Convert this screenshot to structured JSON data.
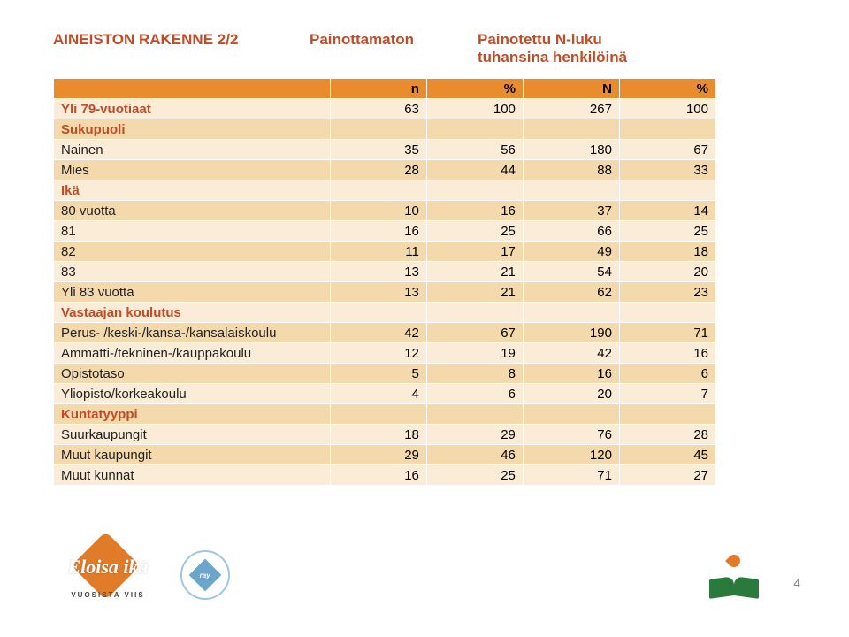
{
  "title": "AINEISTON RAKENNE 2/2",
  "subtitle1": "Painottamaton",
  "subtitle2_line1": "Painotettu N-luku",
  "subtitle2_line2": "tuhansina henkilöinä",
  "headers": {
    "n": "n",
    "pct1": "%",
    "N": "N",
    "pct2": "%"
  },
  "rows": [
    {
      "label": "Yli 79-vuotiaat",
      "c": [
        "63",
        "100",
        "267",
        "100"
      ],
      "band": "cream",
      "section": true
    },
    {
      "label": "Sukupuoli",
      "c": [
        "",
        "",
        "",
        ""
      ],
      "band": "tan",
      "section": true
    },
    {
      "label": "Nainen",
      "c": [
        "35",
        "56",
        "180",
        "67"
      ],
      "band": "cream"
    },
    {
      "label": "Mies",
      "c": [
        "28",
        "44",
        "88",
        "33"
      ],
      "band": "tan"
    },
    {
      "label": "Ikä",
      "c": [
        "",
        "",
        "",
        ""
      ],
      "band": "cream",
      "section": true
    },
    {
      "label": "80 vuotta",
      "c": [
        "10",
        "16",
        "37",
        "14"
      ],
      "band": "tan"
    },
    {
      "label": "81",
      "c": [
        "16",
        "25",
        "66",
        "25"
      ],
      "band": "cream"
    },
    {
      "label": "82",
      "c": [
        "11",
        "17",
        "49",
        "18"
      ],
      "band": "tan"
    },
    {
      "label": "83",
      "c": [
        "13",
        "21",
        "54",
        "20"
      ],
      "band": "cream"
    },
    {
      "label": "Yli 83 vuotta",
      "c": [
        "13",
        "21",
        "62",
        "23"
      ],
      "band": "tan"
    },
    {
      "label": "Vastaajan koulutus",
      "c": [
        "",
        "",
        "",
        ""
      ],
      "band": "cream",
      "section": true
    },
    {
      "label": "Perus- /keski-/kansa-/kansalaiskoulu",
      "c": [
        "42",
        "67",
        "190",
        "71"
      ],
      "band": "tan"
    },
    {
      "label": "Ammatti-/tekninen-/kauppakoulu",
      "c": [
        "12",
        "19",
        "42",
        "16"
      ],
      "band": "cream"
    },
    {
      "label": "Opistotaso",
      "c": [
        "5",
        "8",
        "16",
        "6"
      ],
      "band": "tan"
    },
    {
      "label": "Yliopisto/korkeakoulu",
      "c": [
        "4",
        "6",
        "20",
        "7"
      ],
      "band": "cream"
    },
    {
      "label": "Kuntatyyppi",
      "c": [
        "",
        "",
        "",
        ""
      ],
      "band": "tan",
      "section": true
    },
    {
      "label": "Suurkaupungit",
      "c": [
        "18",
        "29",
        "76",
        "28"
      ],
      "band": "cream"
    },
    {
      "label": "Muut kaupungit",
      "c": [
        "29",
        "46",
        "120",
        "45"
      ],
      "band": "tan"
    },
    {
      "label": "Muut kunnat",
      "c": [
        "16",
        "25",
        "71",
        "27"
      ],
      "band": "cream"
    }
  ],
  "colors": {
    "title": "#c24c26",
    "band_orange": "#e88c2e",
    "band_cream": "#faecd7",
    "band_tan": "#f4d9ac"
  },
  "logos": {
    "eloisa_main": "Eloisa ikä",
    "eloisa_sub": "VUOSISTA VIIS",
    "ray": "ray"
  },
  "page_number": "4"
}
